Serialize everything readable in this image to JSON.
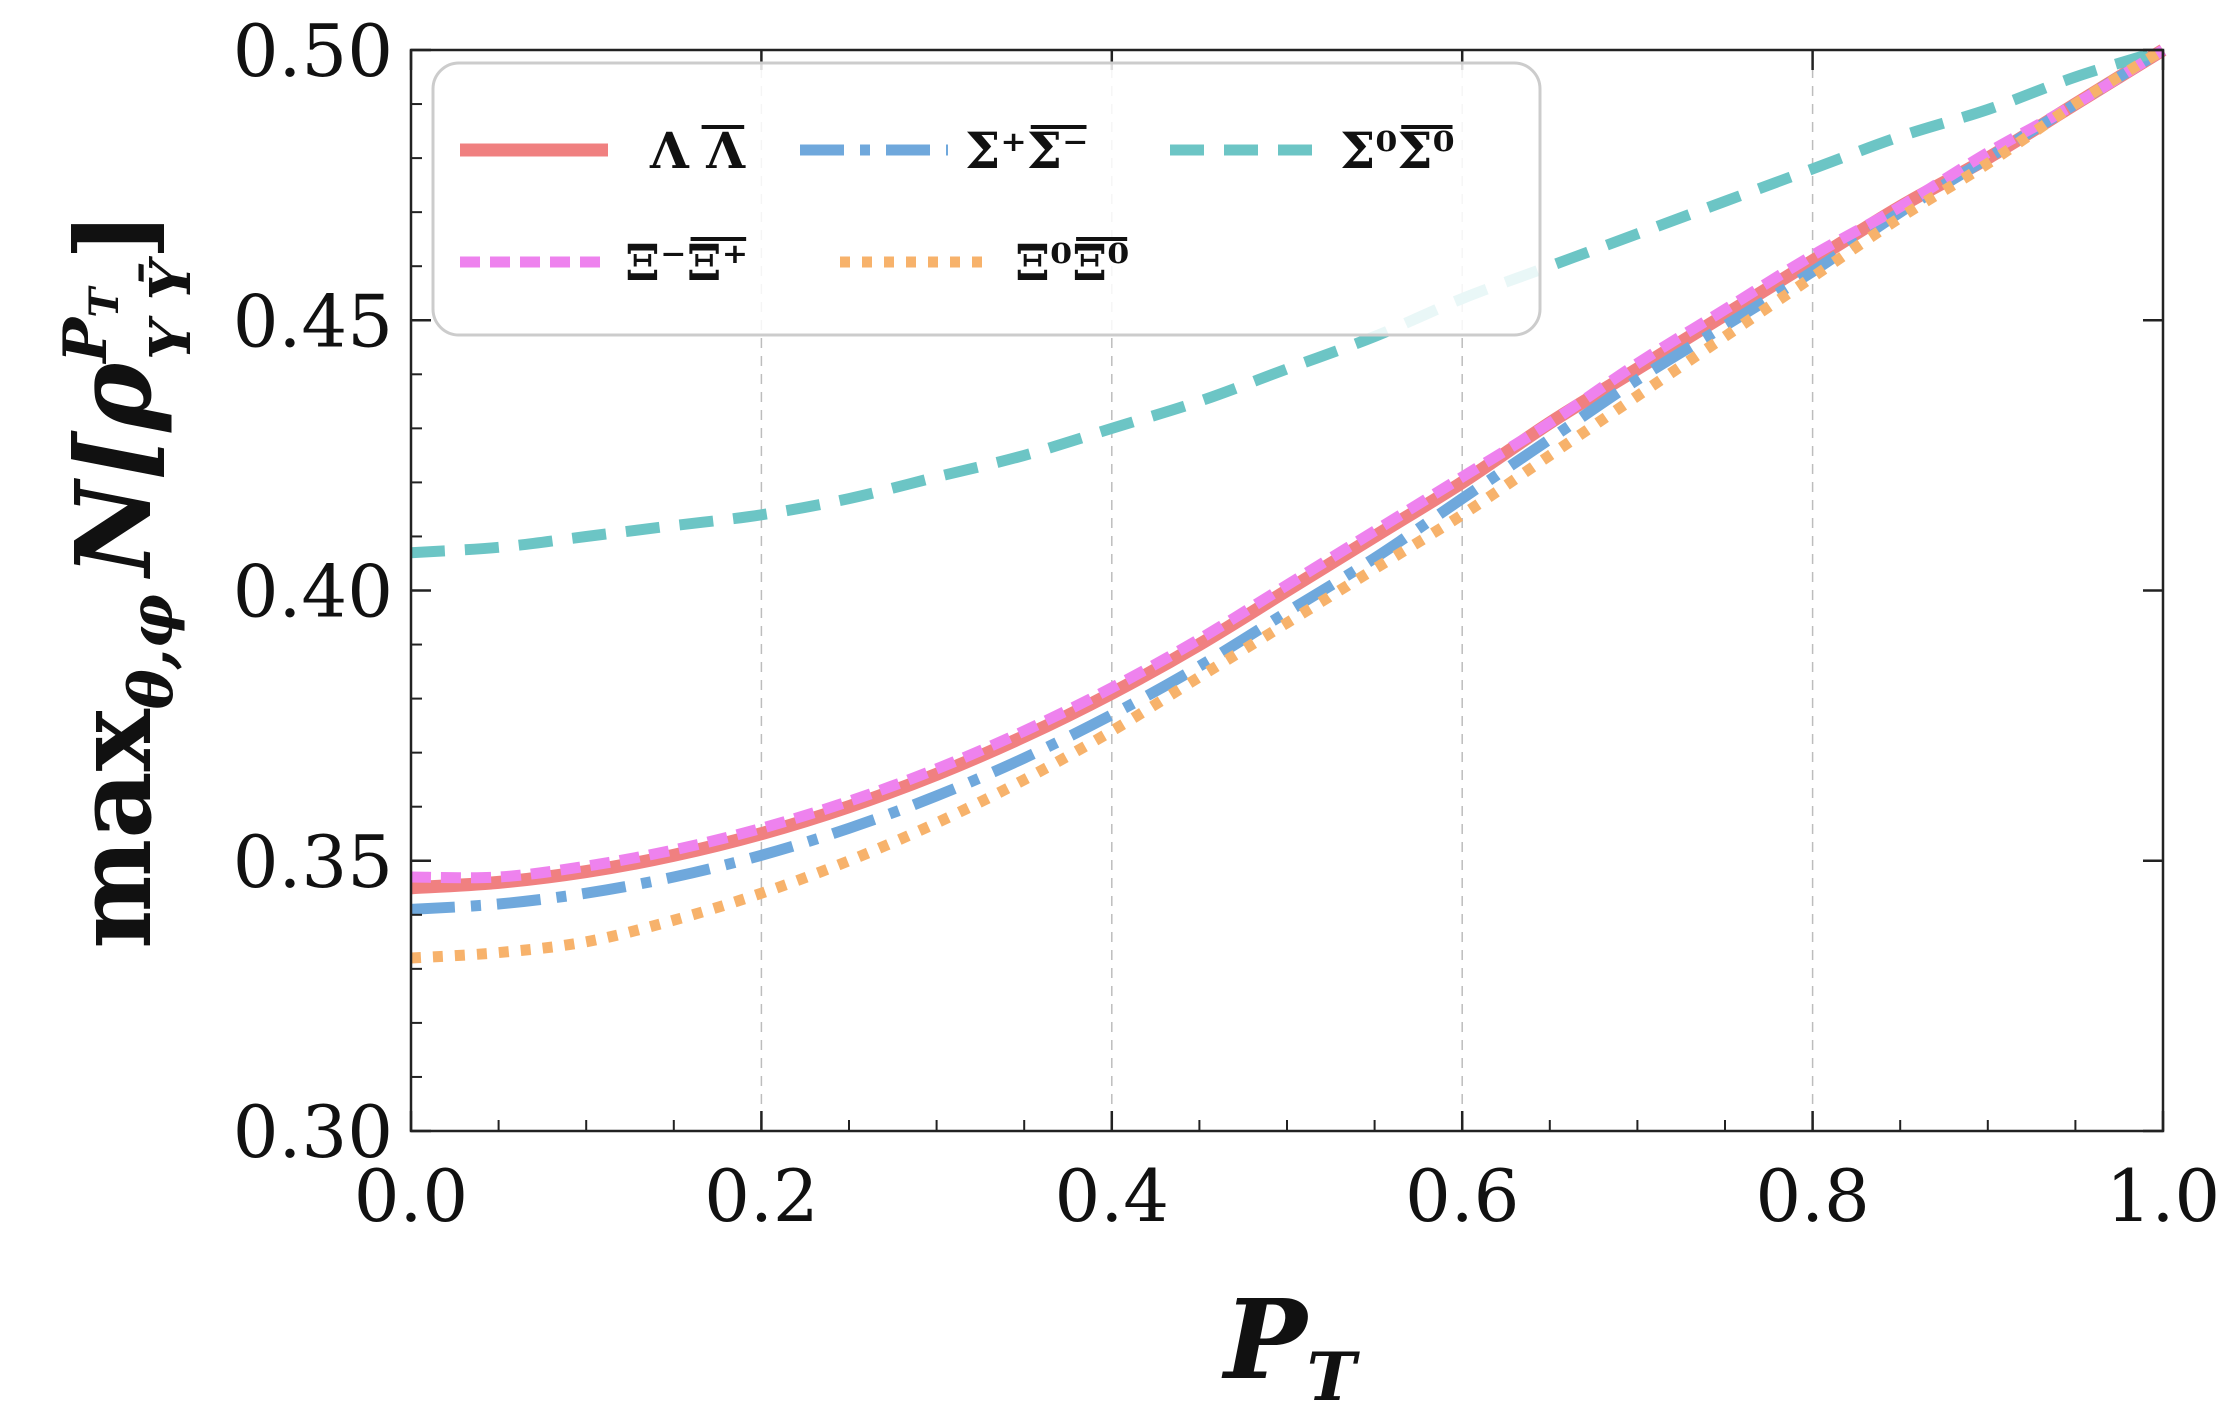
{
  "chart_data": {
    "type": "line",
    "title": "",
    "xlabel": "P_T",
    "ylabel": "max_{θ,φ} N[ρ^{P_T}_{Y Ȳ}]",
    "xlabel_parts": {
      "main": "P",
      "sub": "T"
    },
    "ylabel_parts": {
      "prefix": "max",
      "sub": "θ,φ",
      "fn": "N[",
      "rho": "ρ",
      "sup": "P",
      "supsub": "T",
      "lower": "Y Ȳ",
      "close": "]"
    },
    "xlim": [
      0.0,
      1.0
    ],
    "ylim": [
      0.3,
      0.5
    ],
    "xticks": [
      "0.0",
      "0.2",
      "0.4",
      "0.6",
      "0.8",
      "1.0"
    ],
    "yticks": [
      "0.30",
      "0.35",
      "0.40",
      "0.45",
      "0.50"
    ],
    "xtick_values": [
      0.0,
      0.2,
      0.4,
      0.6,
      0.8,
      1.0
    ],
    "ytick_values": [
      0.3,
      0.35,
      0.4,
      0.45,
      0.5
    ],
    "grid": "x-dashed",
    "legend_position": "top-left",
    "x": [
      0.0,
      0.05,
      0.1,
      0.15,
      0.2,
      0.25,
      0.3,
      0.35,
      0.4,
      0.45,
      0.5,
      0.55,
      0.6,
      0.65,
      0.7,
      0.75,
      0.8,
      0.85,
      0.9,
      0.95,
      1.0
    ],
    "series": [
      {
        "name": "Λ Λ̄",
        "legend_main": "Λ Λ",
        "legend_bar": "Λ",
        "color": "#F08080",
        "dash": "solid",
        "values": [
          0.345,
          0.346,
          0.348,
          0.351,
          0.355,
          0.36,
          0.366,
          0.373,
          0.381,
          0.39,
          0.4,
          0.41,
          0.42,
          0.431,
          0.441,
          0.451,
          0.461,
          0.471,
          0.48,
          0.49,
          0.5
        ]
      },
      {
        "name": "Σ⁺Σ̄⁻",
        "legend_main": "Σ⁺Σ⁻",
        "color": "#6FA8DC",
        "dash": "dashdot",
        "values": [
          0.341,
          0.342,
          0.344,
          0.347,
          0.351,
          0.356,
          0.362,
          0.369,
          0.377,
          0.386,
          0.396,
          0.406,
          0.417,
          0.428,
          0.439,
          0.449,
          0.459,
          0.47,
          0.48,
          0.49,
          0.5
        ]
      },
      {
        "name": "Σ⁰Σ̄⁰",
        "legend_main": "Σ⁰Σ⁰",
        "color": "#6CC5C5",
        "dash": "dashed",
        "values": [
          0.407,
          0.408,
          0.41,
          0.412,
          0.414,
          0.417,
          0.421,
          0.425,
          0.43,
          0.435,
          0.441,
          0.447,
          0.454,
          0.46,
          0.466,
          0.472,
          0.478,
          0.484,
          0.489,
          0.495,
          0.5
        ]
      },
      {
        "name": "Ξ⁻Ξ̄⁺",
        "legend_main": "Ξ⁻Ξ⁺",
        "color": "#EE82EE",
        "dash": "short-dash",
        "values": [
          0.347,
          0.347,
          0.349,
          0.352,
          0.356,
          0.361,
          0.367,
          0.374,
          0.382,
          0.391,
          0.401,
          0.411,
          0.421,
          0.431,
          0.442,
          0.452,
          0.462,
          0.471,
          0.481,
          0.49,
          0.5
        ]
      },
      {
        "name": "Ξ⁰Ξ̄⁰",
        "legend_main": "Ξ⁰Ξ⁰",
        "color": "#F7B26B",
        "dash": "dotted",
        "values": [
          0.332,
          0.333,
          0.335,
          0.339,
          0.344,
          0.35,
          0.357,
          0.365,
          0.374,
          0.384,
          0.394,
          0.404,
          0.414,
          0.425,
          0.436,
          0.447,
          0.458,
          0.469,
          0.479,
          0.49,
          0.5
        ]
      }
    ]
  }
}
